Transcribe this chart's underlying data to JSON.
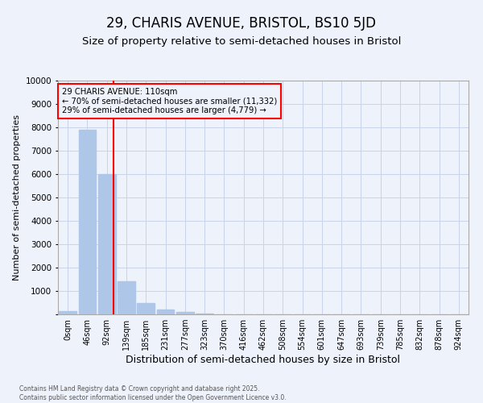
{
  "title": "29, CHARIS AVENUE, BRISTOL, BS10 5JD",
  "subtitle": "Size of property relative to semi-detached houses in Bristol",
  "xlabel": "Distribution of semi-detached houses by size in Bristol",
  "ylabel": "Number of semi-detached properties",
  "bar_labels": [
    "0sqm",
    "46sqm",
    "92sqm",
    "139sqm",
    "185sqm",
    "231sqm",
    "277sqm",
    "323sqm",
    "370sqm",
    "416sqm",
    "462sqm",
    "508sqm",
    "554sqm",
    "601sqm",
    "647sqm",
    "693sqm",
    "739sqm",
    "785sqm",
    "832sqm",
    "878sqm",
    "924sqm"
  ],
  "bar_values": [
    130,
    7900,
    6000,
    1400,
    480,
    200,
    100,
    50,
    0,
    0,
    0,
    0,
    0,
    0,
    0,
    0,
    0,
    0,
    0,
    0,
    0
  ],
  "bar_color": "#aec6e8",
  "property_line_x": 2.35,
  "annotation_text": "29 CHARIS AVENUE: 110sqm\n← 70% of semi-detached houses are smaller (11,332)\n29% of semi-detached houses are larger (4,779) →",
  "ylim": [
    0,
    10000
  ],
  "yticks": [
    0,
    1000,
    2000,
    3000,
    4000,
    5000,
    6000,
    7000,
    8000,
    9000,
    10000
  ],
  "background_color": "#eef2fb",
  "grid_color": "#c8d4ea",
  "footer": "Contains HM Land Registry data © Crown copyright and database right 2025.\nContains public sector information licensed under the Open Government Licence v3.0.",
  "title_fontsize": 12,
  "subtitle_fontsize": 9.5,
  "xlabel_fontsize": 9,
  "ylabel_fontsize": 8,
  "tick_fontsize": 7
}
